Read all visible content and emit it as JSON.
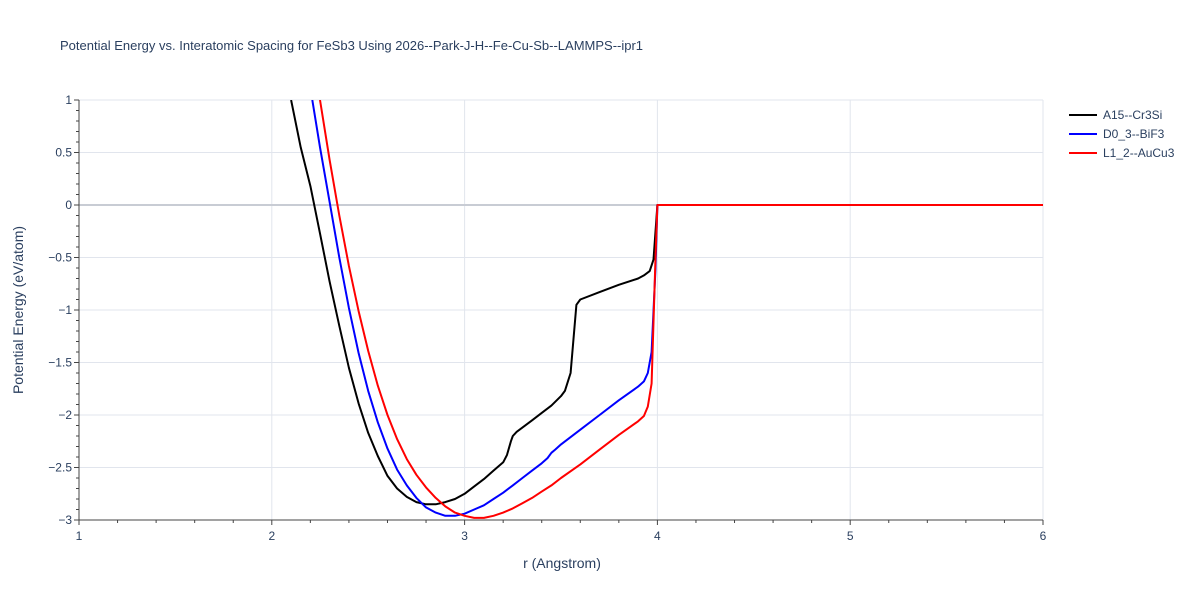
{
  "chart_data": {
    "type": "line",
    "title": "Potential Energy vs. Interatomic Spacing for FeSb3 Using 2026--Park-J-H--Fe-Cu-Sb--LAMMPS--ipr1",
    "xlabel": "r (Angstrom)",
    "ylabel": "Potential Energy (eV/atom)",
    "xlim": [
      1,
      6
    ],
    "ylim": [
      -3,
      1
    ],
    "xticks": [
      1,
      2,
      3,
      4,
      5,
      6
    ],
    "xtick_labels": [
      "1",
      "2",
      "3",
      "4",
      "5",
      "6"
    ],
    "yticks": [
      -3,
      -2.5,
      -2,
      -1.5,
      -1,
      -0.5,
      0,
      0.5,
      1
    ],
    "ytick_labels": [
      "−3",
      "−2.5",
      "−2",
      "−1.5",
      "−1",
      "−0.5",
      "0",
      "0.5",
      "1"
    ],
    "grid": true,
    "legend_position": "top-right",
    "series": [
      {
        "name": "A15--Cr3Si",
        "color": "#000000",
        "x": [
          2.1,
          2.15,
          2.2,
          2.25,
          2.3,
          2.35,
          2.4,
          2.45,
          2.5,
          2.55,
          2.6,
          2.65,
          2.7,
          2.75,
          2.8,
          2.85,
          2.9,
          2.95,
          3.0,
          3.05,
          3.1,
          3.15,
          3.2,
          3.22,
          3.24,
          3.25,
          3.27,
          3.3,
          3.35,
          3.4,
          3.45,
          3.5,
          3.52,
          3.55,
          3.58,
          3.6,
          3.7,
          3.8,
          3.9,
          3.93,
          3.96,
          3.98,
          4.0,
          4.5,
          5.0,
          6.0
        ],
        "values": [
          1.0,
          0.55,
          0.18,
          -0.27,
          -0.73,
          -1.15,
          -1.55,
          -1.89,
          -2.17,
          -2.39,
          -2.58,
          -2.7,
          -2.78,
          -2.83,
          -2.85,
          -2.85,
          -2.83,
          -2.8,
          -2.75,
          -2.68,
          -2.61,
          -2.53,
          -2.45,
          -2.38,
          -2.25,
          -2.2,
          -2.16,
          -2.12,
          -2.05,
          -1.98,
          -1.91,
          -1.82,
          -1.77,
          -1.6,
          -0.95,
          -0.9,
          -0.83,
          -0.76,
          -0.7,
          -0.67,
          -0.63,
          -0.52,
          0.0,
          0.0,
          0.0,
          0.0
        ]
      },
      {
        "name": "D0_3--BiF3",
        "color": "#0000ff",
        "x": [
          2.21,
          2.25,
          2.3,
          2.35,
          2.4,
          2.45,
          2.5,
          2.55,
          2.6,
          2.65,
          2.7,
          2.75,
          2.8,
          2.85,
          2.9,
          2.95,
          3.0,
          3.05,
          3.1,
          3.15,
          3.2,
          3.25,
          3.3,
          3.35,
          3.4,
          3.43,
          3.45,
          3.47,
          3.5,
          3.6,
          3.7,
          3.8,
          3.9,
          3.93,
          3.95,
          3.97,
          3.99,
          4.0,
          4.5,
          5.0,
          6.0
        ],
        "values": [
          1.0,
          0.55,
          0.03,
          -0.5,
          -0.98,
          -1.41,
          -1.77,
          -2.07,
          -2.32,
          -2.52,
          -2.67,
          -2.79,
          -2.88,
          -2.93,
          -2.96,
          -2.96,
          -2.94,
          -2.9,
          -2.86,
          -2.8,
          -2.74,
          -2.67,
          -2.6,
          -2.53,
          -2.46,
          -2.41,
          -2.36,
          -2.33,
          -2.28,
          -2.14,
          -2.0,
          -1.86,
          -1.73,
          -1.68,
          -1.6,
          -1.4,
          -0.6,
          0.0,
          0.0,
          0.0,
          0.0
        ]
      },
      {
        "name": "L1_2--AuCu3",
        "color": "#ff0000",
        "x": [
          2.25,
          2.3,
          2.35,
          2.4,
          2.45,
          2.5,
          2.55,
          2.6,
          2.65,
          2.7,
          2.75,
          2.8,
          2.85,
          2.9,
          2.95,
          3.0,
          3.05,
          3.1,
          3.15,
          3.2,
          3.25,
          3.3,
          3.35,
          3.4,
          3.45,
          3.5,
          3.6,
          3.7,
          3.8,
          3.9,
          3.93,
          3.95,
          3.97,
          3.99,
          4.0,
          4.5,
          5.0,
          6.0
        ],
        "values": [
          1.0,
          0.43,
          -0.1,
          -0.58,
          -1.01,
          -1.39,
          -1.72,
          -2.0,
          -2.23,
          -2.42,
          -2.57,
          -2.69,
          -2.79,
          -2.87,
          -2.93,
          -2.96,
          -2.98,
          -2.98,
          -2.96,
          -2.93,
          -2.89,
          -2.84,
          -2.79,
          -2.73,
          -2.67,
          -2.6,
          -2.47,
          -2.33,
          -2.19,
          -2.06,
          -2.01,
          -1.92,
          -1.7,
          -0.5,
          0.0,
          0.0,
          0.0,
          0.0
        ]
      }
    ]
  }
}
